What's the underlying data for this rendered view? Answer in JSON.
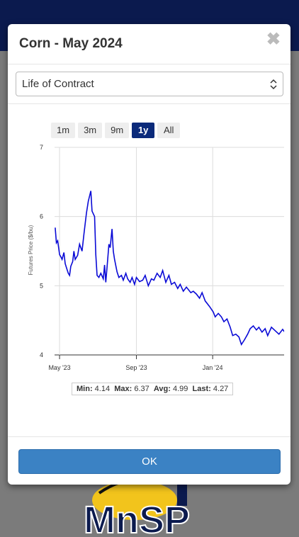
{
  "modal": {
    "title": "Corn - May 2024",
    "close_glyph": "✖",
    "select_value": "Life of Contract",
    "ok_label": "OK"
  },
  "ranges": [
    {
      "label": "1m",
      "active": false
    },
    {
      "label": "3m",
      "active": false
    },
    {
      "label": "9m",
      "active": false
    },
    {
      "label": "1y",
      "active": true
    },
    {
      "label": "All",
      "active": false
    }
  ],
  "stats": {
    "min_label": "Min:",
    "min": "4.14",
    "max_label": "Max:",
    "max": "6.37",
    "avg_label": "Avg:",
    "avg": "4.99",
    "last_label": "Last:",
    "last": "4.27"
  },
  "background_logo": "MnSP",
  "colors": {
    "line": "#0a0ad6",
    "active_range": "#0b2a7a",
    "ok_button": "#3b82c4",
    "topbar": "#0b1a4e"
  },
  "chart_data": {
    "type": "line",
    "title": "",
    "xlabel": "",
    "ylabel": "Futures Price ($/bu)",
    "ylim": [
      4,
      7
    ],
    "yticks": [
      4,
      5,
      6,
      7
    ],
    "xlim": [
      "2023-04-23",
      "2024-04-30"
    ],
    "xticks": [
      {
        "date": "2023-05-01",
        "label": "May '23"
      },
      {
        "date": "2023-09-01",
        "label": "Sep '23"
      },
      {
        "date": "2024-01-01",
        "label": "Jan '24"
      }
    ],
    "grid": true,
    "series": [
      {
        "x": [
          "2023-04-24",
          "2023-04-26",
          "2023-04-28",
          "2023-05-01",
          "2023-05-03",
          "2023-05-05",
          "2023-05-08",
          "2023-05-10",
          "2023-05-12",
          "2023-05-15",
          "2023-05-17",
          "2023-05-19",
          "2023-05-22",
          "2023-05-24",
          "2023-05-26",
          "2023-05-30",
          "2023-06-02",
          "2023-06-06",
          "2023-06-09",
          "2023-06-13",
          "2023-06-16",
          "2023-06-20",
          "2023-06-22",
          "2023-06-26",
          "2023-06-28",
          "2023-06-30",
          "2023-07-03",
          "2023-07-06",
          "2023-07-10",
          "2023-07-12",
          "2023-07-14",
          "2023-07-17",
          "2023-07-19",
          "2023-07-21",
          "2023-07-24",
          "2023-07-26",
          "2023-07-28",
          "2023-08-01",
          "2023-08-04",
          "2023-08-08",
          "2023-08-11",
          "2023-08-15",
          "2023-08-18",
          "2023-08-22",
          "2023-08-25",
          "2023-08-29",
          "2023-09-01",
          "2023-09-06",
          "2023-09-11",
          "2023-09-15",
          "2023-09-20",
          "2023-09-25",
          "2023-09-29",
          "2023-10-04",
          "2023-10-09",
          "2023-10-13",
          "2023-10-18",
          "2023-10-23",
          "2023-10-27",
          "2023-11-01",
          "2023-11-06",
          "2023-11-10",
          "2023-11-15",
          "2023-11-20",
          "2023-11-27",
          "2023-12-01",
          "2023-12-06",
          "2023-12-11",
          "2023-12-15",
          "2023-12-20",
          "2023-12-27",
          "2024-01-02",
          "2024-01-05",
          "2024-01-10",
          "2024-01-15",
          "2024-01-19",
          "2024-01-24",
          "2024-01-29",
          "2024-02-02",
          "2024-02-07",
          "2024-02-12",
          "2024-02-16",
          "2024-02-21",
          "2024-02-26",
          "2024-03-01",
          "2024-03-06",
          "2024-03-11",
          "2024-03-15",
          "2024-03-20",
          "2024-03-25",
          "2024-03-29",
          "2024-04-04",
          "2024-04-10",
          "2024-04-16",
          "2024-04-22",
          "2024-04-26",
          "2024-04-30"
        ],
        "y": [
          5.84,
          5.62,
          5.65,
          5.45,
          5.42,
          5.38,
          5.48,
          5.32,
          5.26,
          5.18,
          5.15,
          5.28,
          5.35,
          5.5,
          5.38,
          5.44,
          5.6,
          5.5,
          5.75,
          6.05,
          6.22,
          6.37,
          6.08,
          6.0,
          5.45,
          5.15,
          5.12,
          5.18,
          5.1,
          5.3,
          5.05,
          5.38,
          5.6,
          5.55,
          5.82,
          5.5,
          5.38,
          5.2,
          5.12,
          5.15,
          5.08,
          5.18,
          5.1,
          5.05,
          5.12,
          5.02,
          5.12,
          5.06,
          5.08,
          5.15,
          5.0,
          5.1,
          5.08,
          5.18,
          5.12,
          5.22,
          5.05,
          5.15,
          5.02,
          5.05,
          4.96,
          5.02,
          4.92,
          4.98,
          4.9,
          4.92,
          4.88,
          4.82,
          4.9,
          4.78,
          4.7,
          4.62,
          4.55,
          4.6,
          4.55,
          4.48,
          4.52,
          4.4,
          4.28,
          4.3,
          4.26,
          4.15,
          4.22,
          4.3,
          4.38,
          4.42,
          4.36,
          4.4,
          4.33,
          4.38,
          4.28,
          4.4,
          4.35,
          4.3,
          4.37,
          4.32,
          4.27
        ]
      }
    ]
  }
}
